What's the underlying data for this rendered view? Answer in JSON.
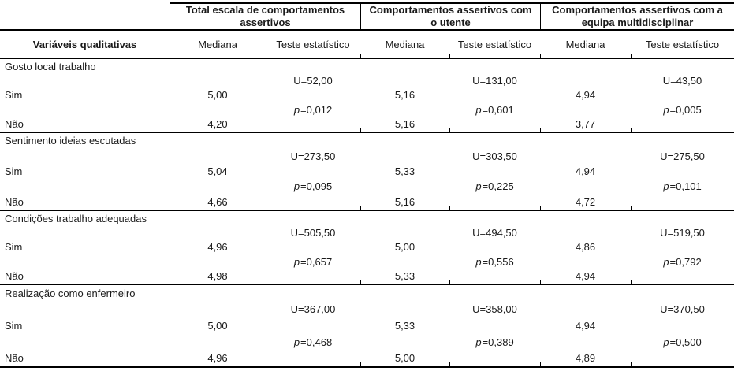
{
  "table": {
    "corner_header": "Variáveis qualitativas",
    "groups": [
      {
        "label": "Total escala de comportamentos assertivos"
      },
      {
        "label": "Comportamentos assertivos com o utente"
      },
      {
        "label": "Comportamentos assertivos com a equipa multidisciplinar"
      }
    ],
    "sub_headers": {
      "median": "Mediana",
      "test": "Teste estatístico"
    },
    "p_symbol": "p",
    "sections": [
      {
        "variable": "Gosto local trabalho",
        "row_yes": {
          "label": "Sim",
          "medians": [
            "5,00",
            "5,16",
            "4,94"
          ]
        },
        "row_no": {
          "label": "Não",
          "medians": [
            "4,20",
            "5,16",
            "3,77"
          ]
        },
        "tests": [
          {
            "u": "U=52,00",
            "p": "=0,012"
          },
          {
            "u": "U=131,00",
            "p": "=0,601"
          },
          {
            "u": "U=43,50",
            "p": "=0,005"
          }
        ]
      },
      {
        "variable": "Sentimento ideias escutadas",
        "row_yes": {
          "label": "Sim",
          "medians": [
            "5,04",
            "5,33",
            "4,94"
          ]
        },
        "row_no": {
          "label": "Não",
          "medians": [
            "4,66",
            "5,16",
            "4,72"
          ]
        },
        "tests": [
          {
            "u": "U=273,50",
            "p": "=0,095"
          },
          {
            "u": "U=303,50",
            "p": "=0,225"
          },
          {
            "u": "U=275,50",
            "p": "=0,101"
          }
        ]
      },
      {
        "variable": "Condições trabalho adequadas",
        "row_yes": {
          "label": "Sim",
          "medians": [
            "4,96",
            "5,00",
            "4,86"
          ]
        },
        "row_no": {
          "label": "Não",
          "medians": [
            "4,98",
            "5,33",
            "4,94"
          ]
        },
        "tests": [
          {
            "u": "U=505,50",
            "p": "=0,657"
          },
          {
            "u": "U=494,50",
            "p": "=0,556"
          },
          {
            "u": "U=519,50",
            "p": "=0,792"
          }
        ]
      },
      {
        "variable": "Realização como enfermeiro",
        "row_yes": {
          "label": "Sim",
          "medians": [
            "5,00",
            "5,33",
            "4,94"
          ]
        },
        "row_no": {
          "label": "Não",
          "medians": [
            "4,96",
            "5,00",
            "4,89"
          ]
        },
        "tests": [
          {
            "u": "U=367,00",
            "p": "=0,468"
          },
          {
            "u": "U=358,00",
            "p": "=0,389"
          },
          {
            "u": "U=370,50",
            "p": "=0,500"
          }
        ]
      }
    ],
    "colors": {
      "text": "#1a1a1a",
      "rule": "#000000"
    }
  }
}
